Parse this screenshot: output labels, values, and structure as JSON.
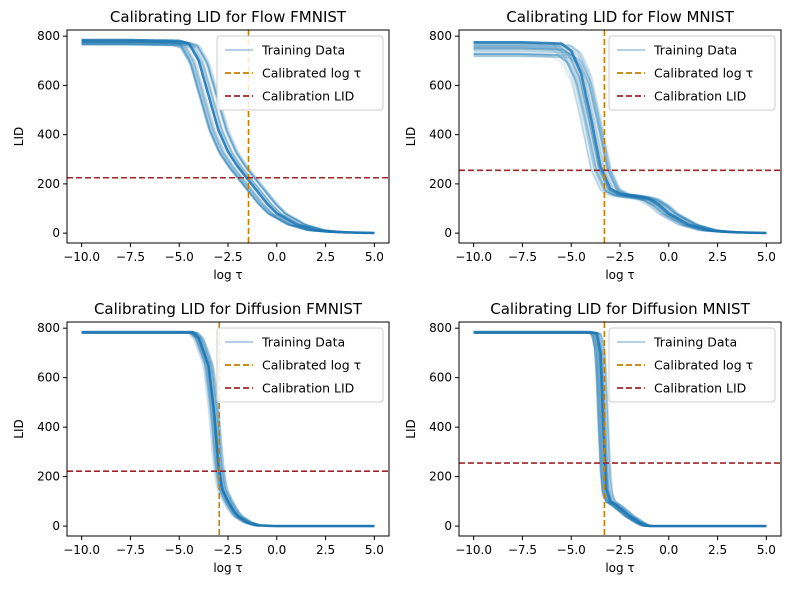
{
  "chart_data": [
    {
      "type": "line",
      "title": "Calibrating LID for Flow FMNIST",
      "xlabel": "log τ",
      "ylabel": "LID",
      "xlim": [
        -10.75,
        5.75
      ],
      "ylim": [
        -40,
        825
      ],
      "xticks": [
        "−10.0",
        "−7.5",
        "−5.0",
        "−2.5",
        "0.0",
        "2.5",
        "5.0"
      ],
      "xtick_values": [
        -10,
        -7.5,
        -5,
        -2.5,
        0,
        2.5,
        5
      ],
      "yticks": [
        "0",
        "200",
        "400",
        "600",
        "800"
      ],
      "ytick_values": [
        0,
        200,
        400,
        600,
        800
      ],
      "calibrated_log_tau": -1.45,
      "calibration_lid": 225,
      "series": [
        {
          "name": "Training Data",
          "x": [
            -10,
            -7.5,
            -5,
            -4.5,
            -4,
            -3.5,
            -3,
            -2.5,
            -2,
            -1.5,
            -1,
            -0.5,
            0,
            1,
            2,
            3,
            4,
            5
          ],
          "y": [
            784,
            784,
            781,
            770,
            700,
            560,
            420,
            330,
            270,
            220,
            170,
            120,
            80,
            35,
            12,
            5,
            2,
            1
          ]
        }
      ],
      "legend": [
        "Training Data",
        "Calibrated log τ",
        "Calibration LID"
      ],
      "legend_position": "top-right",
      "grid": false
    },
    {
      "type": "line",
      "title": "Calibrating LID for Flow MNIST",
      "xlabel": "log τ",
      "ylabel": "LID",
      "xlim": [
        -10.75,
        5.75
      ],
      "ylim": [
        -40,
        825
      ],
      "xticks": [
        "−10.0",
        "−7.5",
        "−5.0",
        "−2.5",
        "0.0",
        "2.5",
        "5.0"
      ],
      "xtick_values": [
        -10,
        -7.5,
        -5,
        -2.5,
        0,
        2.5,
        5
      ],
      "yticks": [
        "0",
        "200",
        "400",
        "600",
        "800"
      ],
      "ytick_values": [
        0,
        200,
        400,
        600,
        800
      ],
      "calibrated_log_tau": -3.3,
      "calibration_lid": 255,
      "series": [
        {
          "name": "Training Data",
          "x": [
            -10,
            -7.5,
            -5.5,
            -5,
            -4.5,
            -4,
            -3.5,
            -3,
            -2.5,
            -2,
            -1.5,
            -1,
            -0.5,
            0,
            1,
            2,
            3,
            4,
            5
          ],
          "y": [
            775,
            775,
            770,
            740,
            650,
            470,
            270,
            180,
            160,
            155,
            150,
            140,
            115,
            80,
            35,
            12,
            5,
            2,
            1
          ]
        }
      ],
      "legend": [
        "Training Data",
        "Calibrated log τ",
        "Calibration LID"
      ],
      "legend_position": "top-right",
      "grid": false
    },
    {
      "type": "line",
      "title": "Calibrating LID for Diffusion FMNIST",
      "xlabel": "log τ",
      "ylabel": "LID",
      "xlim": [
        -10.75,
        5.75
      ],
      "ylim": [
        -40,
        825
      ],
      "xticks": [
        "−10.0",
        "−7.5",
        "−5.0",
        "−2.5",
        "0.0",
        "2.5",
        "5.0"
      ],
      "xtick_values": [
        -10,
        -7.5,
        -5,
        -2.5,
        0,
        2.5,
        5
      ],
      "yticks": [
        "0",
        "200",
        "400",
        "600",
        "800"
      ],
      "ytick_values": [
        0,
        200,
        400,
        600,
        800
      ],
      "calibrated_log_tau": -2.95,
      "calibration_lid": 222,
      "series": [
        {
          "name": "Training Data",
          "x": [
            -10,
            -7.5,
            -5,
            -4.3,
            -4,
            -3.5,
            -3.2,
            -3,
            -2.8,
            -2.5,
            -2.2,
            -2,
            -1.5,
            -1,
            0,
            2.5,
            5
          ],
          "y": [
            784,
            784,
            784,
            784,
            760,
            650,
            450,
            250,
            150,
            100,
            60,
            40,
            15,
            3,
            0,
            0,
            0
          ]
        }
      ],
      "legend": [
        "Training Data",
        "Calibrated log τ",
        "Calibration LID"
      ],
      "legend_position": "top-right",
      "grid": false
    },
    {
      "type": "line",
      "title": "Calibrating LID for Diffusion MNIST",
      "xlabel": "log τ",
      "ylabel": "LID",
      "xlim": [
        -10.75,
        5.75
      ],
      "ylim": [
        -40,
        825
      ],
      "xticks": [
        "−10.0",
        "−7.5",
        "−5.0",
        "−2.5",
        "0.0",
        "2.5",
        "5.0"
      ],
      "xtick_values": [
        -10,
        -7.5,
        -5,
        -2.5,
        0,
        2.5,
        5
      ],
      "yticks": [
        "0",
        "200",
        "400",
        "600",
        "800"
      ],
      "ytick_values": [
        0,
        200,
        400,
        600,
        800
      ],
      "calibrated_log_tau": -3.3,
      "calibration_lid": 255,
      "series": [
        {
          "name": "Training Data",
          "x": [
            -10,
            -7.5,
            -5,
            -4,
            -3.7,
            -3.5,
            -3.35,
            -3.2,
            -3,
            -2.7,
            -2.3,
            -2,
            -1.5,
            -1.2,
            -1,
            0,
            2.5,
            5
          ],
          "y": [
            784,
            784,
            784,
            784,
            780,
            700,
            400,
            150,
            100,
            85,
            60,
            40,
            15,
            3,
            0,
            0,
            0,
            0
          ]
        }
      ],
      "legend": [
        "Training Data",
        "Calibrated log τ",
        "Calibration LID"
      ],
      "legend_position": "top-right",
      "grid": false
    }
  ],
  "colors": {
    "training": "#1f77b4",
    "training_light": "#a9c8e3",
    "calibrated_tau": "#c77d00",
    "calibration_lid": "#a2242a"
  }
}
